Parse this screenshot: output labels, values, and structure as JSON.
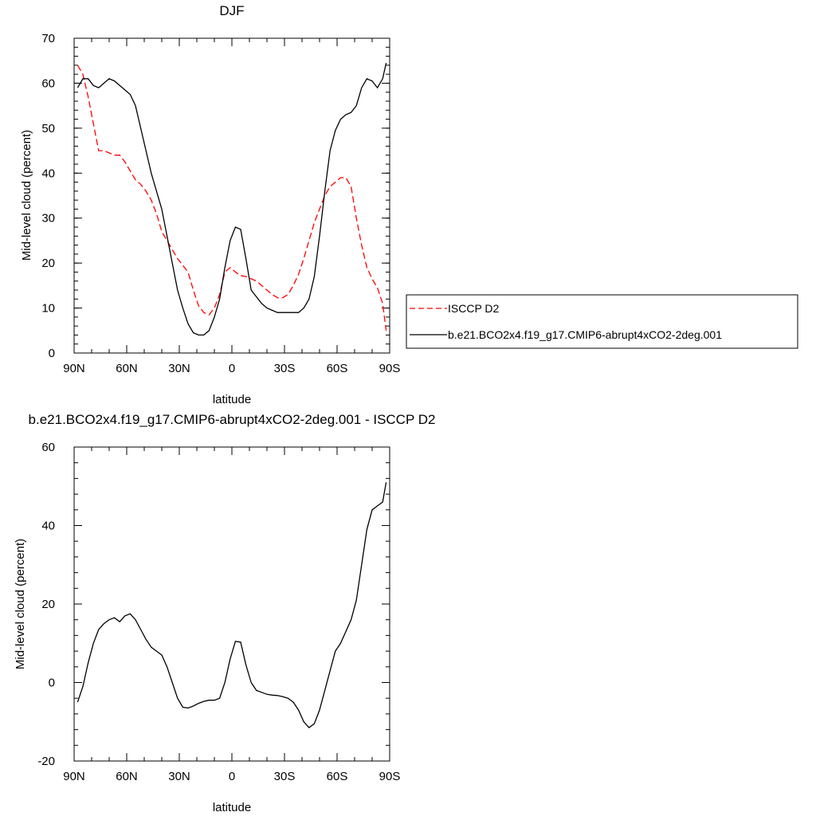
{
  "chart_data": [
    {
      "type": "line",
      "title": "DJF",
      "xlabel": "latitude",
      "ylabel": "Mid-level cloud (percent)",
      "xlim": [
        90,
        -90
      ],
      "ylim": [
        0,
        70
      ],
      "xticks": [
        90,
        60,
        30,
        0,
        -30,
        -60,
        -90
      ],
      "xtick_labels": [
        "90N",
        "60N",
        "30N",
        "0",
        "30S",
        "60S",
        "90S"
      ],
      "yticks": [
        0,
        10,
        20,
        30,
        40,
        50,
        60,
        70
      ],
      "ytick_labels": [
        "0",
        "10",
        "20",
        "30",
        "40",
        "50",
        "60",
        "70"
      ],
      "grid": false,
      "legend": "right",
      "series": [
        {
          "name": "ISCCP D2",
          "color": "#ff0000",
          "dash": "dashed",
          "x": [
            88,
            85,
            82,
            79,
            76,
            73,
            70,
            67,
            64,
            61,
            58,
            55,
            52,
            49,
            46,
            43,
            40,
            37,
            34,
            31,
            28,
            25,
            22,
            19,
            16,
            13,
            10,
            7,
            4,
            1,
            -2,
            -5,
            -8,
            -11,
            -14,
            -17,
            -20,
            -23,
            -26,
            -29,
            -32,
            -35,
            -38,
            -41,
            -44,
            -47,
            -50,
            -53,
            -56,
            -59,
            -62,
            -65,
            -68,
            -71,
            -74,
            -77,
            -80,
            -83,
            -86,
            -88
          ],
          "y": [
            64,
            62,
            57,
            51,
            45,
            45,
            44.5,
            44,
            44,
            42.5,
            40.5,
            38.5,
            37.5,
            36,
            34,
            31,
            27,
            25,
            23,
            21,
            19.5,
            18,
            14,
            10.5,
            9,
            8.5,
            10,
            13,
            18,
            19,
            18,
            17.2,
            17,
            16.5,
            16,
            15,
            14,
            13,
            12.3,
            12.3,
            13,
            15,
            17.5,
            21,
            25,
            29,
            32,
            35,
            37,
            38,
            39,
            39,
            37,
            30,
            24,
            19,
            16.5,
            14.5,
            11,
            5
          ]
        },
        {
          "name": "b.e21.BCO2x4.f19_g17.CMIP6-abrupt4xCO2-2deg.001",
          "color": "#000000",
          "dash": "solid",
          "x": [
            88,
            85,
            82,
            79,
            76,
            73,
            70,
            67,
            64,
            61,
            58,
            55,
            52,
            49,
            46,
            43,
            40,
            37,
            34,
            31,
            28,
            25,
            22,
            19,
            16,
            13,
            10,
            7,
            4,
            1,
            -2,
            -5,
            -8,
            -11,
            -14,
            -17,
            -20,
            -23,
            -26,
            -29,
            -32,
            -35,
            -38,
            -41,
            -44,
            -47,
            -50,
            -53,
            -56,
            -59,
            -62,
            -65,
            -68,
            -71,
            -74,
            -77,
            -80,
            -83,
            -86,
            -88
          ],
          "y": [
            59,
            61,
            61,
            59.5,
            59,
            60,
            61,
            60.5,
            59.5,
            58.5,
            57.5,
            55,
            50,
            45,
            40,
            36,
            32,
            26,
            20,
            14,
            10,
            6.5,
            4.5,
            4,
            4,
            5,
            8,
            12,
            19,
            25,
            28,
            27.5,
            21,
            14,
            12.5,
            11,
            10,
            9.5,
            9,
            9,
            9,
            9,
            9,
            10,
            12,
            17,
            26,
            36,
            45,
            49.5,
            52,
            53,
            53.5,
            55,
            59,
            61,
            60.5,
            59,
            61,
            64.5
          ]
        }
      ]
    },
    {
      "type": "line",
      "title": "b.e21.BCO2x4.f19_g17.CMIP6-abrupt4xCO2-2deg.001 - ISCCP D2",
      "xlabel": "latitude",
      "ylabel": "Mid-level cloud (percent)",
      "xlim": [
        90,
        -90
      ],
      "ylim": [
        -20,
        60
      ],
      "xticks": [
        90,
        60,
        30,
        0,
        -30,
        -60,
        -90
      ],
      "xtick_labels": [
        "90N",
        "60N",
        "30N",
        "0",
        "30S",
        "60S",
        "90S"
      ],
      "yticks": [
        -20,
        0,
        20,
        40,
        60
      ],
      "ytick_labels": [
        "-20",
        "0",
        "20",
        "40",
        "60"
      ],
      "grid": false,
      "legend": "none",
      "series": [
        {
          "color": "#000000",
          "dash": "solid",
          "x": [
            88,
            85,
            82,
            79,
            76,
            73,
            70,
            67,
            64,
            61,
            58,
            55,
            52,
            49,
            46,
            43,
            40,
            37,
            34,
            31,
            28,
            25,
            22,
            19,
            16,
            13,
            10,
            7,
            4,
            1,
            -2,
            -5,
            -8,
            -11,
            -14,
            -17,
            -20,
            -23,
            -26,
            -29,
            -32,
            -35,
            -38,
            -41,
            -44,
            -47,
            -50,
            -53,
            -56,
            -59,
            -62,
            -65,
            -68,
            -71,
            -74,
            -77,
            -80,
            -83,
            -86,
            -88
          ],
          "y": [
            -5,
            -1,
            5,
            10,
            13.5,
            15,
            16,
            16.5,
            15.5,
            17,
            17.5,
            16,
            13.5,
            11,
            9,
            8,
            7,
            4,
            0,
            -4,
            -6.3,
            -6.5,
            -6,
            -5.3,
            -4.8,
            -4.5,
            -4.5,
            -4,
            0,
            6,
            10.5,
            10.3,
            4.5,
            0,
            -2,
            -2.5,
            -3,
            -3.2,
            -3.3,
            -3.6,
            -4,
            -5,
            -7,
            -10,
            -11.5,
            -10.5,
            -7,
            -2,
            3,
            8,
            10,
            13,
            16,
            21,
            30,
            39,
            44,
            45,
            46,
            51
          ]
        }
      ]
    }
  ]
}
